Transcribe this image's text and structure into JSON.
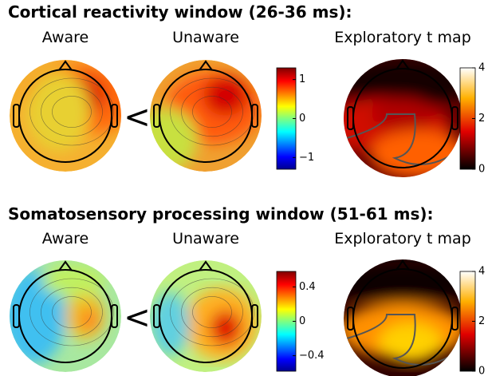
{
  "sections": [
    {
      "title": "Cortical reactivity window (26-36 ms):",
      "labels": [
        "Aware",
        "Unaware",
        "Exploratory t map"
      ],
      "comparator": "<",
      "colorbar": {
        "lim": [
          -1.3,
          1.3
        ],
        "ticks": [
          1,
          0,
          {
            "value": -1,
            "label": "−1"
          }
        ]
      },
      "t_colorbar": {
        "lim": [
          0,
          4
        ],
        "ticks": [
          4,
          2,
          0
        ]
      }
    },
    {
      "title": "Somatosensory processing window (51-61 ms):",
      "labels": [
        "Aware",
        "Unaware",
        "Exploratory t map"
      ],
      "comparator": "<",
      "colorbar": {
        "lim": [
          -0.58,
          0.58
        ],
        "ticks": [
          0.4,
          0,
          {
            "value": -0.4,
            "label": "−0.4"
          }
        ]
      },
      "t_colorbar": {
        "lim": [
          0,
          4
        ],
        "ticks": [
          4,
          2,
          0
        ]
      }
    }
  ]
}
